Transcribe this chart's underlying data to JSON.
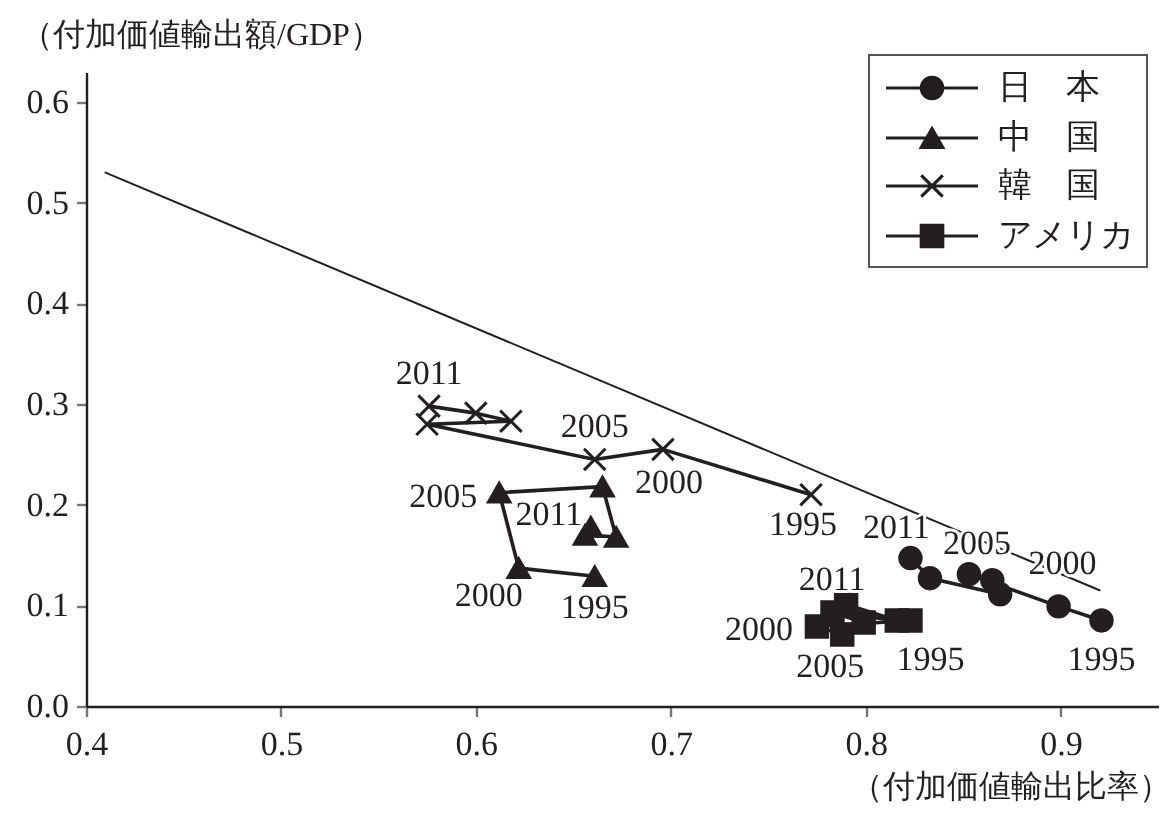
{
  "chart_data": {
    "type": "line",
    "xlabel": "（付加価値輸出比率）",
    "ylabel": "（付加価値輸出額/GDP）",
    "xlim": [
      0.4,
      0.95
    ],
    "ylim": [
      0,
      0.63
    ],
    "xticks": [
      0.4,
      0.5,
      0.6,
      0.7,
      0.8,
      0.9
    ],
    "yticks": [
      {
        "value": 0,
        "label": "0.0"
      },
      0.1,
      0.2,
      0.3,
      0.4,
      0.5,
      0.6
    ],
    "legend": "top right",
    "series": [
      {
        "name": "日　本",
        "color": "#231f20",
        "marker": "circle",
        "x": [
          0.921,
          0.899,
          0.853,
          0.865,
          0.869,
          0.833,
          0.823
        ],
        "values": [
          0.085,
          0.099,
          0.131,
          0.125,
          0.111,
          0.127,
          0.147
        ]
      },
      {
        "name": "中　国",
        "color": "#231f20",
        "marker": "triangle",
        "x": [
          0.661,
          0.622,
          0.612,
          0.665,
          0.672,
          0.656,
          0.659
        ],
        "values": [
          0.129,
          0.137,
          0.212,
          0.218,
          0.168,
          0.17,
          0.178
        ]
      },
      {
        "name": "韓　国",
        "color": "#231f20",
        "marker": "cross",
        "x": [
          0.772,
          0.696,
          0.661,
          0.575,
          0.618,
          0.6,
          0.576
        ],
        "values": [
          0.21,
          0.255,
          0.245,
          0.28,
          0.283,
          0.291,
          0.298
        ]
      },
      {
        "name": "アメリカ",
        "color": "#231f20",
        "marker": "square",
        "x": [
          0.823,
          0.775,
          0.788,
          0.799,
          0.783,
          0.816,
          0.79
        ],
        "values": [
          0.085,
          0.079,
          0.071,
          0.083,
          0.093,
          0.085,
          0.101
        ]
      },
      {
        "color": "#231f20",
        "marker": "none",
        "x": [
          0.41,
          0.92
        ],
        "values": [
          0.53,
          0.115
        ]
      }
    ],
    "annotations": [
      {
        "text": "2011",
        "x": 0.823,
        "y": 0.147
      },
      {
        "text": "2005",
        "x": 0.853,
        "y": 0.131
      },
      {
        "text": "2000",
        "x": 0.899,
        "y": 0.099
      },
      {
        "text": "1995",
        "x": 0.921,
        "y": 0.085
      },
      {
        "text": "2011",
        "x": 0.576,
        "y": 0.298
      },
      {
        "text": "2005",
        "x": 0.661,
        "y": 0.245
      },
      {
        "text": "2000",
        "x": 0.696,
        "y": 0.255
      },
      {
        "text": "1995",
        "x": 0.772,
        "y": 0.21
      },
      {
        "text": "2005",
        "x": 0.612,
        "y": 0.212
      },
      {
        "text": "2011",
        "x": 0.659,
        "y": 0.178
      },
      {
        "text": "2000",
        "x": 0.622,
        "y": 0.137
      },
      {
        "text": "1995",
        "x": 0.661,
        "y": 0.129
      },
      {
        "text": "2011",
        "x": 0.79,
        "y": 0.101
      },
      {
        "text": "2000",
        "x": 0.775,
        "y": 0.079
      },
      {
        "text": "2005",
        "x": 0.788,
        "y": 0.071
      },
      {
        "text": "1995",
        "x": 0.823,
        "y": 0.085
      }
    ]
  }
}
